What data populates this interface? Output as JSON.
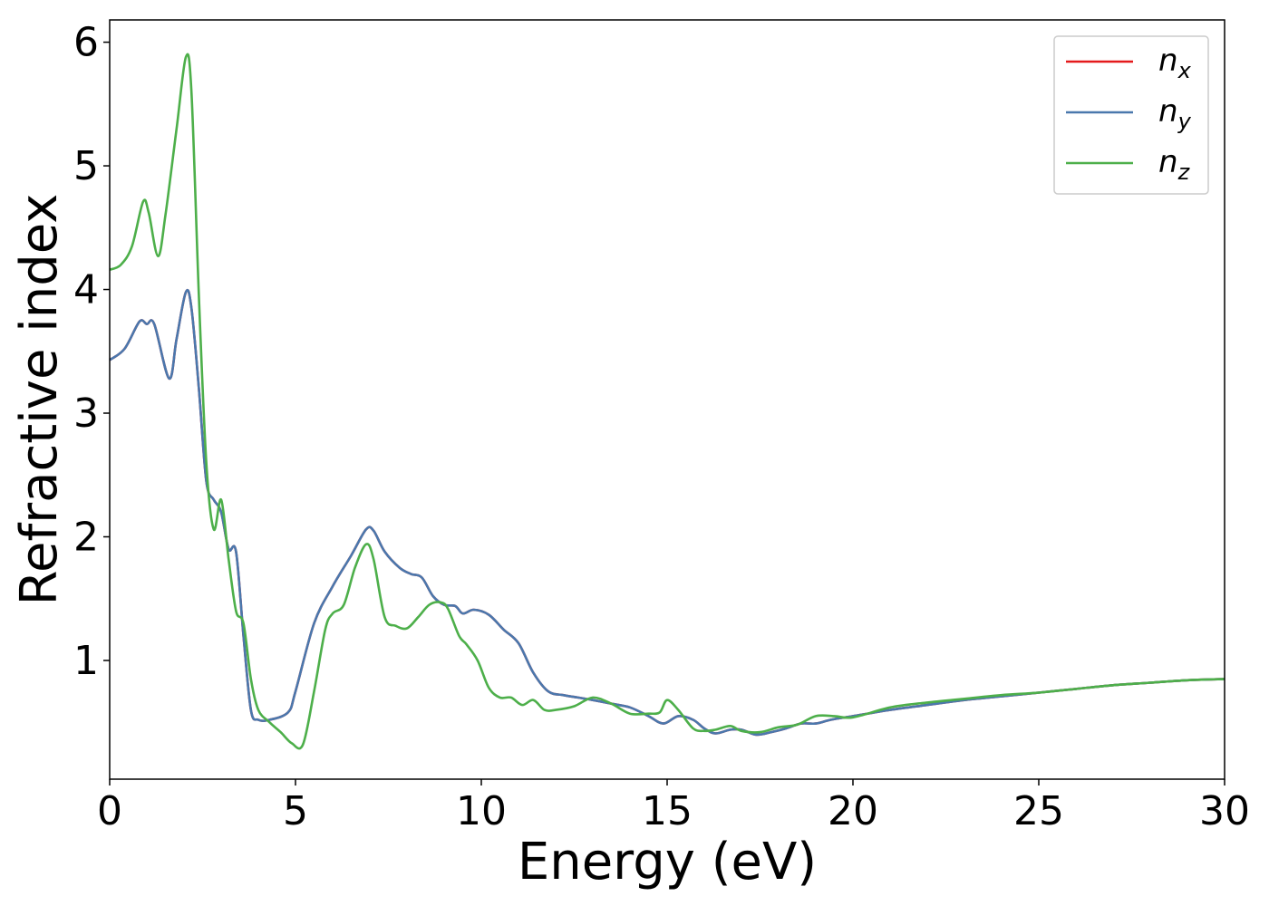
{
  "chart_data": {
    "type": "line",
    "xlabel": "Energy (eV)",
    "ylabel": "Refractive index",
    "xlim": [
      0,
      30
    ],
    "ylim": [
      0.04,
      6.18
    ],
    "xticks": [
      "0",
      "5",
      "10",
      "15",
      "20",
      "25",
      "30"
    ],
    "yticks": [
      "1",
      "2",
      "3",
      "4",
      "5",
      "6"
    ],
    "grid": false,
    "legend_position": "top-right",
    "series": [
      {
        "name": "n_x",
        "label_main": "n",
        "label_sub": "x",
        "color": "#e41a1c",
        "x": [
          0,
          0.4,
          0.8,
          1.0,
          1.2,
          1.6,
          1.8,
          2.05,
          2.2,
          2.4,
          2.6,
          2.8,
          3.0,
          3.2,
          3.4,
          3.6,
          3.8,
          4.0,
          4.3,
          4.8,
          5.0,
          5.5,
          6.0,
          6.5,
          6.9,
          7.1,
          7.4,
          7.8,
          8.1,
          8.4,
          8.7,
          9.0,
          9.3,
          9.5,
          9.8,
          10.2,
          10.6,
          11.0,
          11.4,
          11.8,
          12.2,
          12.6,
          13.0,
          13.5,
          14.0,
          14.5,
          14.9,
          15.3,
          15.7,
          16.0,
          16.3,
          16.7,
          17.0,
          17.4,
          17.8,
          18.2,
          18.6,
          19.0,
          19.4,
          20.0,
          21.0,
          22.0,
          23.0,
          24.0,
          25.0,
          26.0,
          27.0,
          28.0,
          29.0,
          30.0
        ],
        "y": [
          3.43,
          3.52,
          3.74,
          3.72,
          3.72,
          3.28,
          3.6,
          3.98,
          3.85,
          3.2,
          2.45,
          2.3,
          2.2,
          1.9,
          1.88,
          1.2,
          0.6,
          0.52,
          0.52,
          0.58,
          0.75,
          1.3,
          1.6,
          1.85,
          2.06,
          2.05,
          1.88,
          1.75,
          1.7,
          1.67,
          1.52,
          1.45,
          1.44,
          1.38,
          1.41,
          1.37,
          1.25,
          1.14,
          0.9,
          0.75,
          0.72,
          0.7,
          0.68,
          0.65,
          0.62,
          0.55,
          0.49,
          0.55,
          0.52,
          0.45,
          0.41,
          0.44,
          0.44,
          0.4,
          0.42,
          0.45,
          0.49,
          0.49,
          0.52,
          0.55,
          0.6,
          0.64,
          0.68,
          0.71,
          0.74,
          0.77,
          0.8,
          0.82,
          0.84,
          0.85
        ]
      },
      {
        "name": "n_y",
        "label_main": "n",
        "label_sub": "y",
        "color": "#4a78ad",
        "x": [
          0,
          0.4,
          0.8,
          1.0,
          1.2,
          1.6,
          1.8,
          2.05,
          2.2,
          2.4,
          2.6,
          2.8,
          3.0,
          3.2,
          3.4,
          3.6,
          3.8,
          4.0,
          4.3,
          4.8,
          5.0,
          5.5,
          6.0,
          6.5,
          6.9,
          7.1,
          7.4,
          7.8,
          8.1,
          8.4,
          8.7,
          9.0,
          9.3,
          9.5,
          9.8,
          10.2,
          10.6,
          11.0,
          11.4,
          11.8,
          12.2,
          12.6,
          13.0,
          13.5,
          14.0,
          14.5,
          14.9,
          15.3,
          15.7,
          16.0,
          16.3,
          16.7,
          17.0,
          17.4,
          17.8,
          18.2,
          18.6,
          19.0,
          19.4,
          20.0,
          21.0,
          22.0,
          23.0,
          24.0,
          25.0,
          26.0,
          27.0,
          28.0,
          29.0,
          30.0
        ],
        "y": [
          3.43,
          3.52,
          3.74,
          3.72,
          3.72,
          3.28,
          3.6,
          3.98,
          3.85,
          3.2,
          2.45,
          2.3,
          2.2,
          1.9,
          1.88,
          1.2,
          0.6,
          0.52,
          0.52,
          0.58,
          0.75,
          1.3,
          1.6,
          1.85,
          2.06,
          2.05,
          1.88,
          1.75,
          1.7,
          1.67,
          1.52,
          1.45,
          1.44,
          1.38,
          1.41,
          1.37,
          1.25,
          1.14,
          0.9,
          0.75,
          0.72,
          0.7,
          0.68,
          0.65,
          0.62,
          0.55,
          0.49,
          0.55,
          0.52,
          0.45,
          0.41,
          0.44,
          0.44,
          0.4,
          0.42,
          0.45,
          0.49,
          0.49,
          0.52,
          0.55,
          0.6,
          0.64,
          0.68,
          0.71,
          0.74,
          0.77,
          0.8,
          0.82,
          0.84,
          0.85
        ]
      },
      {
        "name": "n_z",
        "label_main": "n",
        "label_sub": "z",
        "color": "#4daf4a",
        "x": [
          0,
          0.3,
          0.6,
          0.9,
          1.05,
          1.3,
          1.5,
          1.8,
          2.05,
          2.2,
          2.4,
          2.6,
          2.8,
          3.0,
          3.2,
          3.4,
          3.6,
          3.8,
          4.0,
          4.3,
          4.6,
          4.9,
          5.2,
          5.5,
          5.8,
          6.0,
          6.3,
          6.6,
          6.9,
          7.1,
          7.4,
          7.7,
          8.0,
          8.3,
          8.6,
          8.9,
          9.1,
          9.4,
          9.6,
          9.9,
          10.2,
          10.5,
          10.8,
          11.1,
          11.4,
          11.7,
          12.0,
          12.5,
          13.0,
          13.5,
          14.0,
          14.5,
          14.8,
          15.0,
          15.3,
          15.7,
          16.0,
          16.3,
          16.7,
          17.0,
          17.5,
          18.0,
          18.5,
          19.0,
          19.5,
          20.0,
          21.0,
          22.0,
          23.0,
          24.0,
          25.0,
          26.0,
          27.0,
          28.0,
          29.0,
          30.0
        ],
        "y": [
          4.16,
          4.2,
          4.35,
          4.71,
          4.62,
          4.27,
          4.6,
          5.3,
          5.88,
          5.6,
          3.95,
          2.6,
          2.06,
          2.3,
          1.82,
          1.4,
          1.3,
          0.85,
          0.6,
          0.5,
          0.42,
          0.33,
          0.32,
          0.75,
          1.25,
          1.38,
          1.45,
          1.75,
          1.94,
          1.82,
          1.35,
          1.28,
          1.26,
          1.35,
          1.45,
          1.47,
          1.42,
          1.2,
          1.13,
          1.0,
          0.78,
          0.7,
          0.7,
          0.64,
          0.68,
          0.6,
          0.6,
          0.63,
          0.7,
          0.65,
          0.57,
          0.57,
          0.58,
          0.68,
          0.6,
          0.45,
          0.43,
          0.44,
          0.47,
          0.43,
          0.42,
          0.46,
          0.48,
          0.55,
          0.55,
          0.54,
          0.62,
          0.66,
          0.69,
          0.72,
          0.74,
          0.77,
          0.8,
          0.82,
          0.84,
          0.85
        ]
      }
    ]
  }
}
